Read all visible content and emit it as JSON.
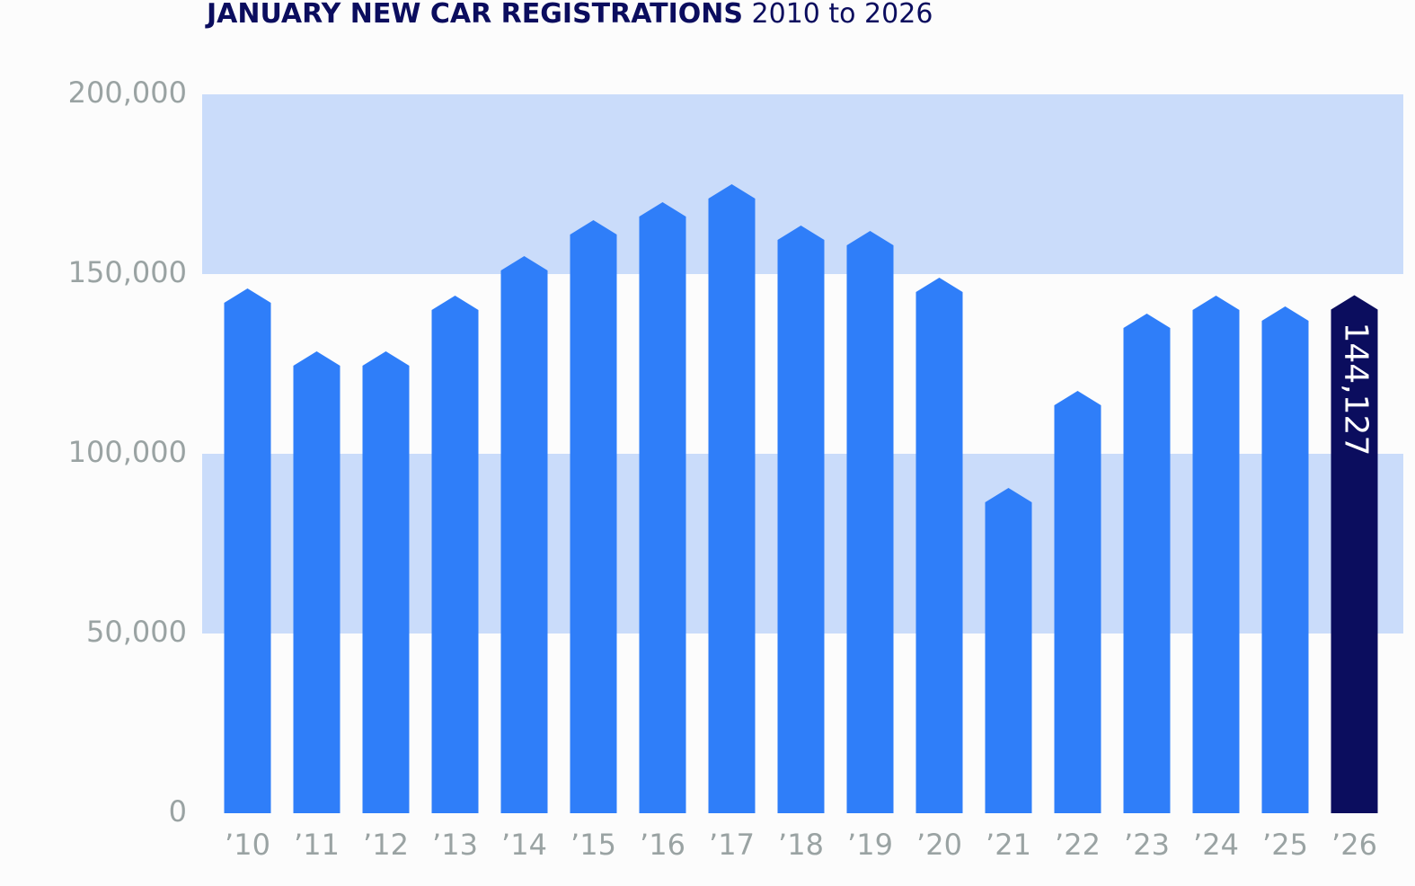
{
  "chart_data": {
    "type": "bar",
    "title": "JANUARY NEW CAR REGISTRATIONS",
    "subtitle": "2010 to 2026",
    "categories": [
      "’10",
      "’11",
      "’12",
      "’13",
      "’14",
      "’15",
      "’16",
      "’17",
      "’18",
      "’19",
      "’20",
      "’21",
      "’22",
      "’23",
      "’24",
      "’25",
      "’26"
    ],
    "values": [
      146000,
      128500,
      128500,
      144000,
      155000,
      165000,
      170000,
      175000,
      163500,
      162000,
      149000,
      90500,
      117500,
      139000,
      144000,
      141000,
      144127
    ],
    "value_labels": [
      null,
      null,
      null,
      null,
      null,
      null,
      null,
      null,
      null,
      null,
      null,
      null,
      null,
      null,
      null,
      null,
      "144,127"
    ],
    "colors": [
      "#2f7ef9",
      "#2f7ef9",
      "#2f7ef9",
      "#2f7ef9",
      "#2f7ef9",
      "#2f7ef9",
      "#2f7ef9",
      "#2f7ef9",
      "#2f7ef9",
      "#2f7ef9",
      "#2f7ef9",
      "#2f7ef9",
      "#2f7ef9",
      "#2f7ef9",
      "#2f7ef9",
      "#2f7ef9",
      "#0b0d5e"
    ],
    "ylim": [
      0,
      200000
    ],
    "yticks": [
      {
        "value": 0,
        "label": "0"
      },
      {
        "value": 50000,
        "label": "50,000"
      },
      {
        "value": 100000,
        "label": "100,000"
      },
      {
        "value": 150000,
        "label": "150,000"
      },
      {
        "value": 200000,
        "label": "200,000"
      }
    ],
    "band_color": "#cadcfa"
  }
}
